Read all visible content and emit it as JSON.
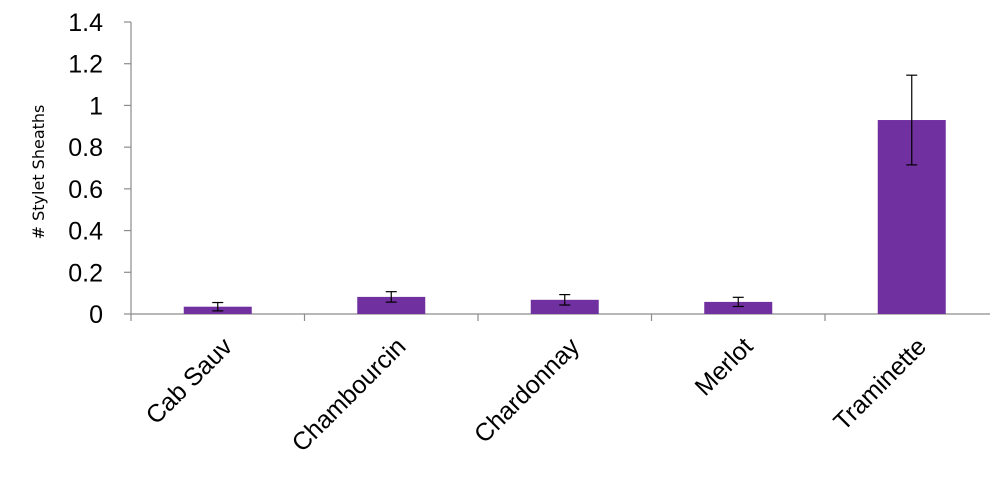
{
  "chart_data": {
    "type": "bar",
    "title": "",
    "xlabel": "",
    "ylabel": "# Stylet Sheaths",
    "categories": [
      "Cab Sauv",
      "Chambourcin",
      "Chardonnay",
      "Merlot",
      "Traminette"
    ],
    "values": [
      0.035,
      0.082,
      0.068,
      0.058,
      0.93
    ],
    "error": [
      0.02,
      0.025,
      0.025,
      0.022,
      0.215
    ],
    "ylim": [
      0,
      1.4
    ],
    "yticks": [
      "0",
      "0.2",
      "0.4",
      "0.6",
      "0.8",
      "1",
      "1.2",
      "1.4"
    ],
    "grid": false,
    "legend": "none",
    "bar_color": "#7030a0"
  }
}
